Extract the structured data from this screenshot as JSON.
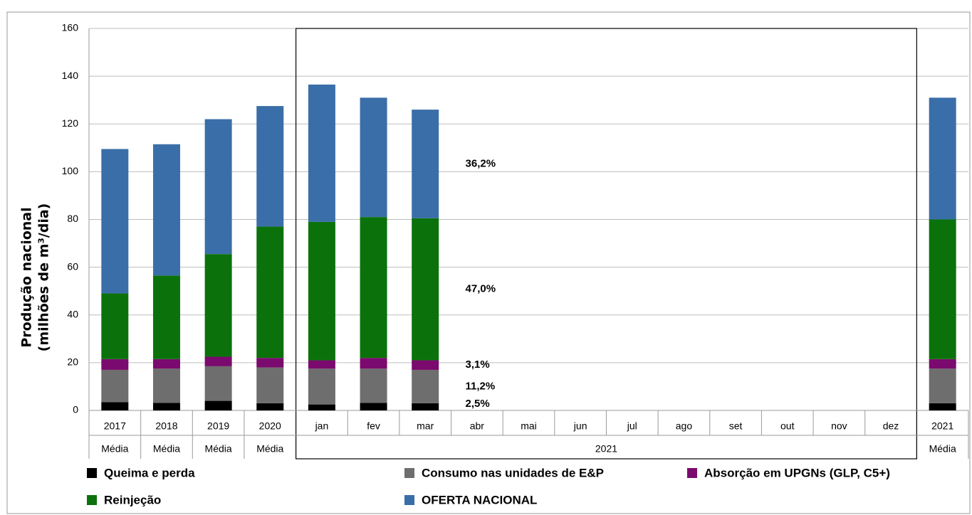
{
  "chart_data": {
    "type": "stacked_bar",
    "y_label": [
      "Produção nacional",
      "(milhões de m³/dia)"
    ],
    "categories": [
      "2017",
      "2018",
      "2019",
      "2020",
      "jan",
      "fev",
      "mar",
      "abr",
      "mai",
      "jun",
      "jul",
      "ago",
      "set",
      "out",
      "nov",
      "dez",
      "2021"
    ],
    "groups": [
      {
        "label": "Média",
        "span": 1
      },
      {
        "label": "Média",
        "span": 1
      },
      {
        "label": "Média",
        "span": 1
      },
      {
        "label": "Média",
        "span": 1
      },
      {
        "label": "2021",
        "span": 12
      },
      {
        "label": "Média",
        "span": 1
      }
    ],
    "series": [
      {
        "name": "Queima e perda",
        "color": "#000000",
        "share_label": "2,5%",
        "values": [
          3.5,
          3.2,
          4,
          3,
          2.5,
          3.2,
          3,
          null,
          null,
          null,
          null,
          null,
          null,
          null,
          null,
          null,
          3
        ]
      },
      {
        "name": "Consumo nas unidades de E&P",
        "color": "#6e6e6e",
        "share_label": "11,2%",
        "values": [
          13.5,
          14.3,
          14.5,
          15,
          15,
          14.3,
          14,
          null,
          null,
          null,
          null,
          null,
          null,
          null,
          null,
          null,
          14.5
        ]
      },
      {
        "name": "Absorção em UPGNs (GLP, C5+)",
        "color": "#7a0a6e",
        "share_label": "3,1%",
        "values": [
          4.5,
          4,
          4,
          4,
          3.5,
          4.5,
          4,
          null,
          null,
          null,
          null,
          null,
          null,
          null,
          null,
          null,
          4
        ]
      },
      {
        "name": "Reinjeção",
        "color": "#0b720b",
        "share_label": "47,0%",
        "values": [
          27.5,
          35,
          43,
          55,
          58,
          59,
          59.5,
          null,
          null,
          null,
          null,
          null,
          null,
          null,
          null,
          null,
          58.5
        ]
      },
      {
        "name": "OFERTA NACIONAL",
        "color": "#3a6ea8",
        "share_label": "36,2%",
        "values": [
          60.5,
          55,
          56.5,
          50.5,
          57.5,
          50,
          45.5,
          null,
          null,
          null,
          null,
          null,
          null,
          null,
          null,
          null,
          51
        ]
      }
    ],
    "ylim": [
      0,
      160
    ],
    "yticks": [
      0,
      20,
      40,
      60,
      80,
      100,
      120,
      140,
      160
    ],
    "grid": true
  }
}
